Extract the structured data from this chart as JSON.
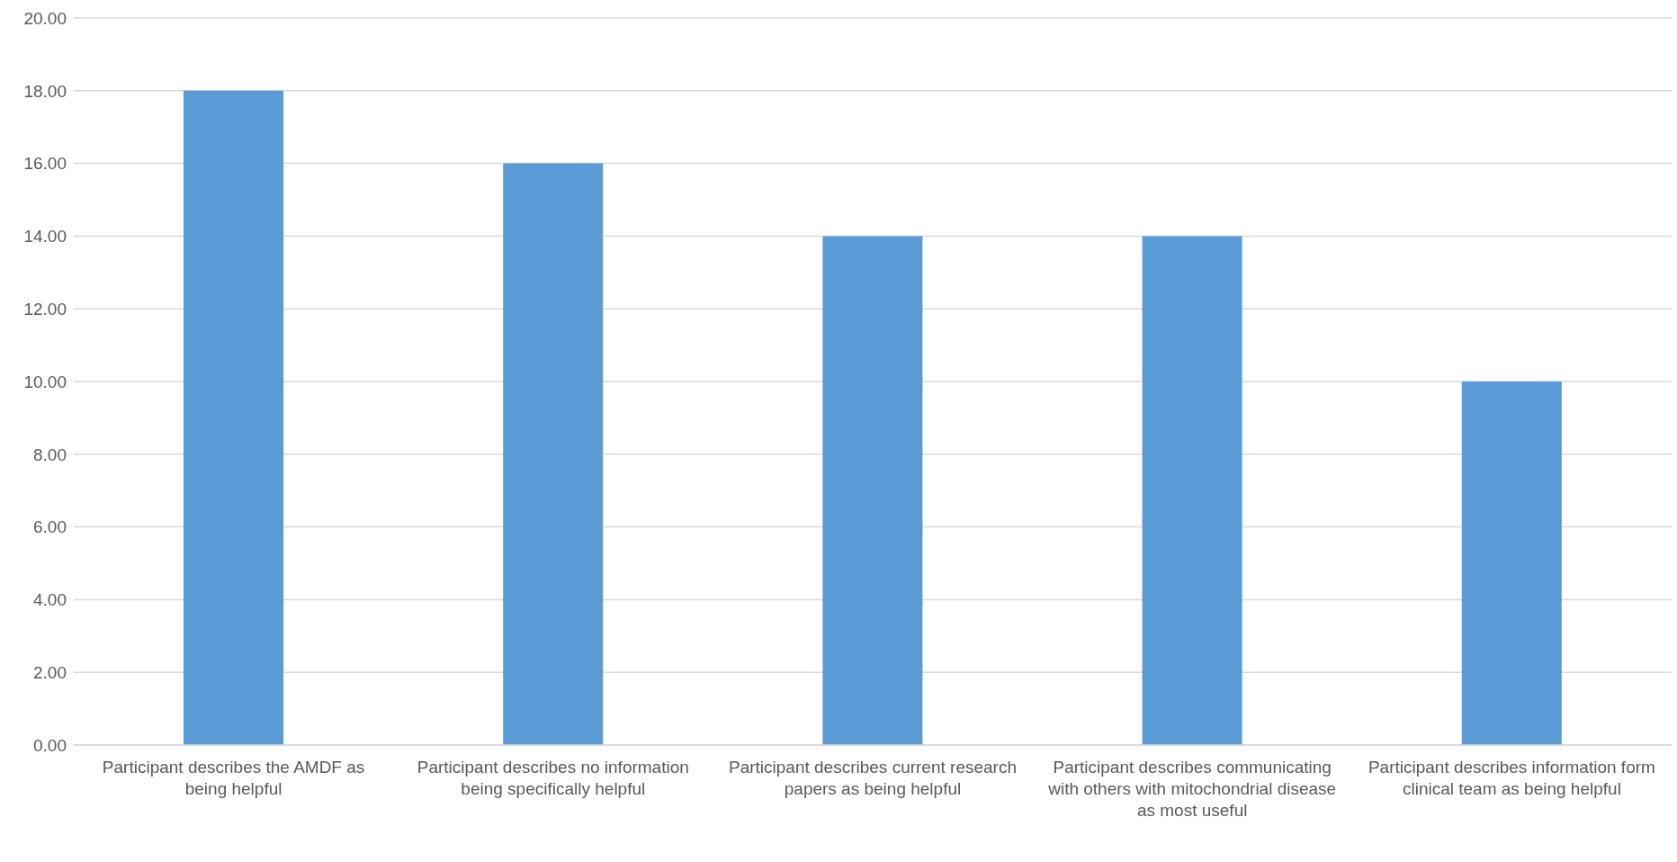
{
  "chart_data": {
    "type": "bar",
    "categories": [
      "Participant describes the AMDF as being helpful",
      "Participant describes no information being specifically helpful",
      "Participant describes current research papers as being helpful",
      "Participant describes communicating with others with mitochondrial disease as most useful",
      "Participant describes information form clinical team as being helpful"
    ],
    "values": [
      18,
      16,
      14,
      14,
      10
    ],
    "color": "#5b9bd5",
    "ylim": [
      0,
      20
    ],
    "yticks": [
      {
        "value": 0,
        "label": "0.00"
      },
      {
        "value": 2,
        "label": "2.00"
      },
      {
        "value": 4,
        "label": "4.00"
      },
      {
        "value": 6,
        "label": "6.00"
      },
      {
        "value": 8,
        "label": "8.00"
      },
      {
        "value": 10,
        "label": "10.00"
      },
      {
        "value": 12,
        "label": "12.00"
      },
      {
        "value": 14,
        "label": "14.00"
      },
      {
        "value": 16,
        "label": "16.00"
      },
      {
        "value": 18,
        "label": "18.00"
      },
      {
        "value": 20,
        "label": "20.00"
      }
    ],
    "grid": "y"
  }
}
